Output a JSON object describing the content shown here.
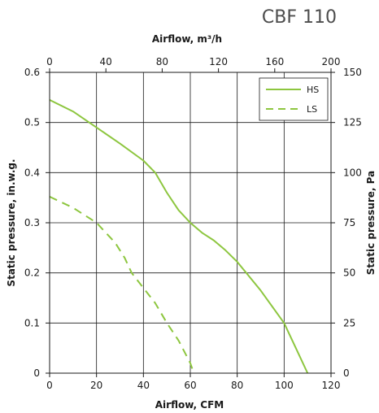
{
  "chart_data": {
    "type": "line",
    "title": "CBF 110",
    "xlabel": "Airflow, CFM",
    "ylabel": "Static pressure, in.w.g.",
    "x2label": "Airflow, m³/h",
    "y2label": "Static pressure, Pa",
    "xlim": [
      0,
      120
    ],
    "ylim": [
      0,
      0.6
    ],
    "x2lim": [
      0,
      200
    ],
    "y2lim": [
      0,
      150
    ],
    "x_ticks": [
      "0",
      "20",
      "40",
      "60",
      "80",
      "100",
      "120"
    ],
    "y_ticks": [
      "0",
      "0.1",
      "0.2",
      "0.3",
      "0.4",
      "0.5",
      "0.6"
    ],
    "x2_ticks": [
      "0",
      "40",
      "80",
      "120",
      "160",
      "200"
    ],
    "y2_ticks": [
      "0",
      "25",
      "50",
      "75",
      "100",
      "125",
      "150"
    ],
    "grid": true,
    "legend_position": "top-right",
    "colors": {
      "series": "#8dc63f",
      "axis": "#1a1a1a",
      "title": "#4d4d4d"
    },
    "series": [
      {
        "name": "HS",
        "style": "solid",
        "points": [
          [
            0,
            0.545
          ],
          [
            10,
            0.522
          ],
          [
            20,
            0.49
          ],
          [
            30,
            0.458
          ],
          [
            40,
            0.424
          ],
          [
            45,
            0.4
          ],
          [
            50,
            0.36
          ],
          [
            55,
            0.325
          ],
          [
            60,
            0.3
          ],
          [
            65,
            0.28
          ],
          [
            70,
            0.265
          ],
          [
            75,
            0.245
          ],
          [
            80,
            0.222
          ],
          [
            90,
            0.165
          ],
          [
            100,
            0.1
          ],
          [
            105,
            0.05
          ],
          [
            110,
            0.0
          ]
        ]
      },
      {
        "name": "LS",
        "style": "dashed",
        "points": [
          [
            0,
            0.352
          ],
          [
            10,
            0.33
          ],
          [
            20,
            0.3
          ],
          [
            28,
            0.26
          ],
          [
            32,
            0.23
          ],
          [
            35,
            0.2
          ],
          [
            40,
            0.17
          ],
          [
            45,
            0.14
          ],
          [
            50,
            0.1
          ],
          [
            55,
            0.065
          ],
          [
            60,
            0.02
          ],
          [
            61.5,
            0.0
          ]
        ]
      }
    ]
  }
}
